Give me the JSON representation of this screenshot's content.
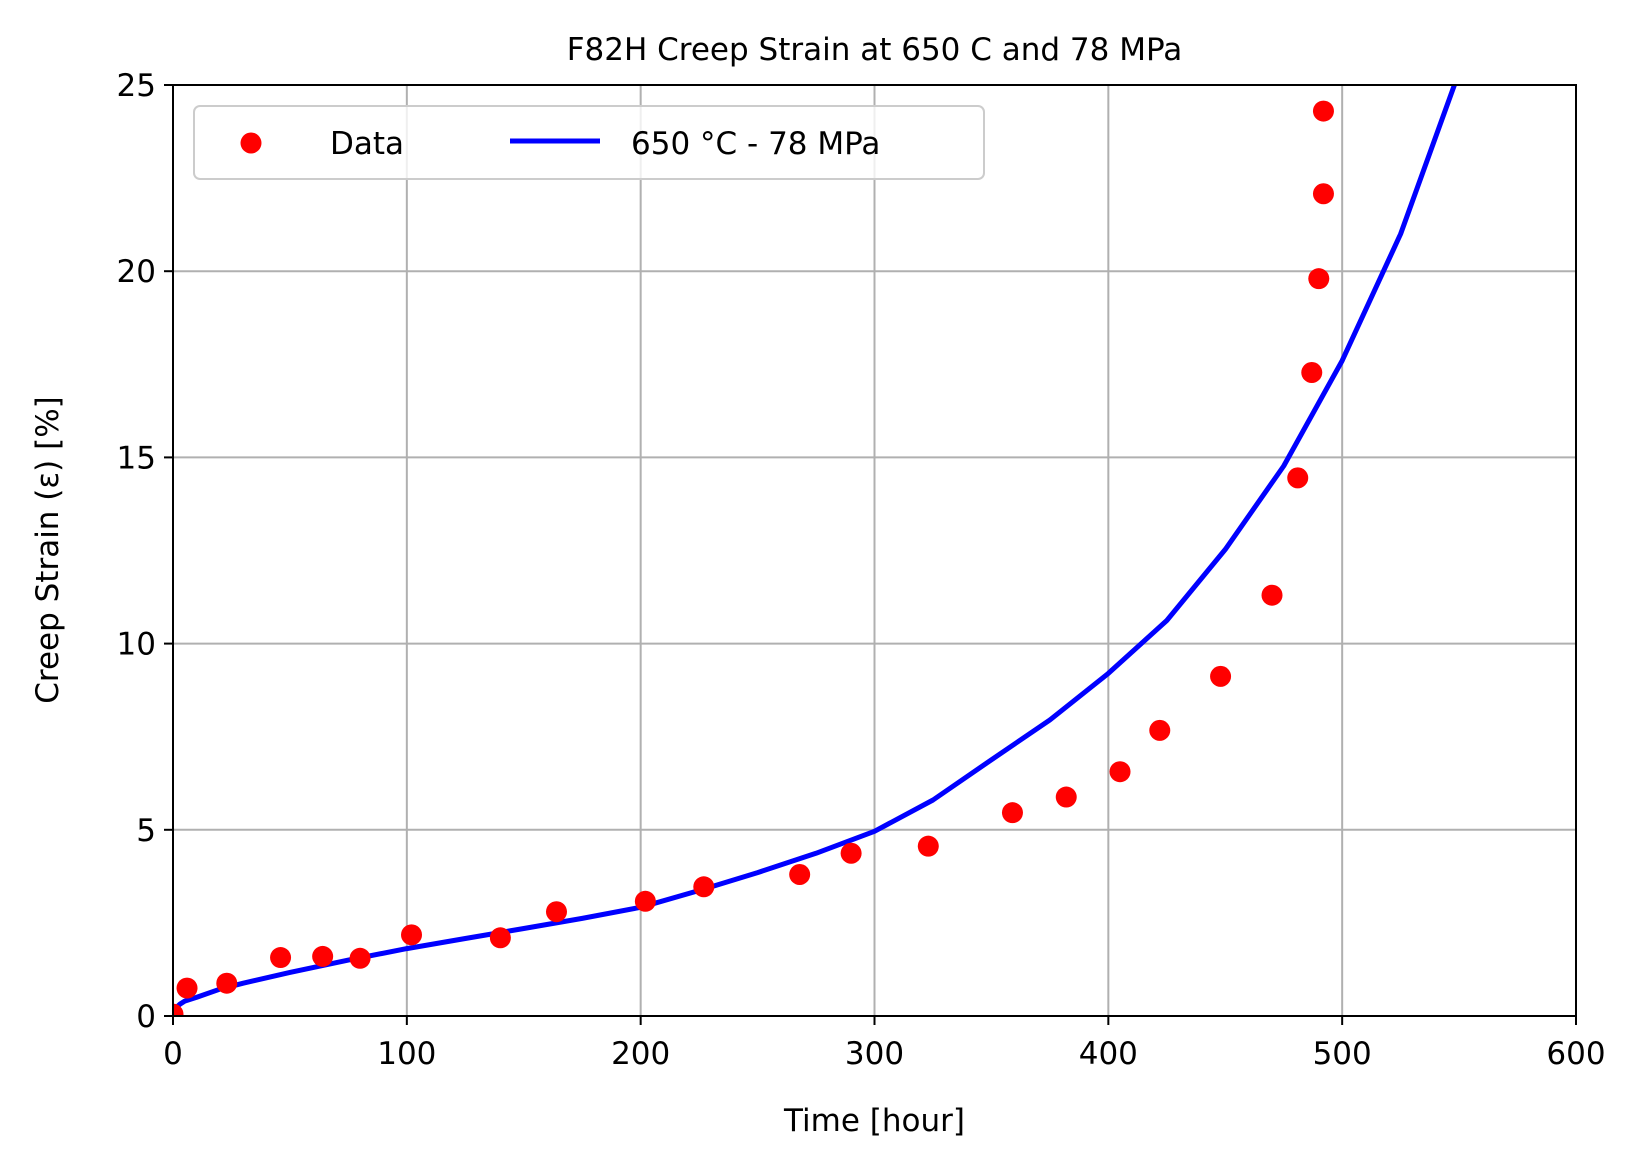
{
  "chart_data": {
    "type": "scatter",
    "title": "F82H Creep Strain at 650 C and 78 MPa",
    "xlabel": "Time [hour]",
    "ylabel": "Creep Strain (ε) [%]",
    "xlim": [
      0,
      600
    ],
    "ylim": [
      0,
      25
    ],
    "xticks": [
      0,
      100,
      200,
      300,
      400,
      500,
      600
    ],
    "yticks": [
      0,
      5,
      10,
      15,
      20,
      25
    ],
    "xtick_labels": [
      "0",
      "100",
      "200",
      "300",
      "400",
      "500",
      "600"
    ],
    "ytick_labels": [
      "0",
      "5",
      "10",
      "15",
      "20",
      "25"
    ],
    "grid": true,
    "legend_position": "top-left",
    "series": [
      {
        "name": "Data",
        "kind": "scatter",
        "color": "#ff0000",
        "x": [
          0,
          6,
          23,
          46,
          64,
          80,
          102,
          140,
          164,
          202,
          227,
          268,
          290,
          323,
          359,
          382,
          405,
          422,
          448,
          470,
          481,
          487,
          490,
          492,
          492
        ],
        "y": [
          0.05,
          0.75,
          0.88,
          1.57,
          1.6,
          1.55,
          2.18,
          2.1,
          2.8,
          3.08,
          3.47,
          3.8,
          4.37,
          4.56,
          5.46,
          5.88,
          6.56,
          7.67,
          9.12,
          11.3,
          14.45,
          17.28,
          19.8,
          22.08,
          24.3
        ]
      },
      {
        "name": "650 °C - 78 MPa",
        "kind": "line",
        "color": "#0000ff",
        "x": [
          0,
          1,
          3,
          5,
          10,
          20,
          30,
          50,
          75,
          100,
          125,
          150,
          175,
          200,
          225,
          250,
          275,
          300,
          325,
          350,
          375,
          400,
          425,
          450,
          475,
          500,
          525,
          548
        ],
        "y": [
          0.0,
          0.2,
          0.32,
          0.4,
          0.5,
          0.72,
          0.88,
          1.17,
          1.5,
          1.81,
          2.08,
          2.35,
          2.62,
          2.92,
          3.37,
          3.85,
          4.37,
          4.96,
          5.8,
          6.88,
          7.95,
          9.2,
          10.62,
          12.53,
          14.77,
          17.6,
          21.0,
          25.0
        ]
      }
    ]
  }
}
